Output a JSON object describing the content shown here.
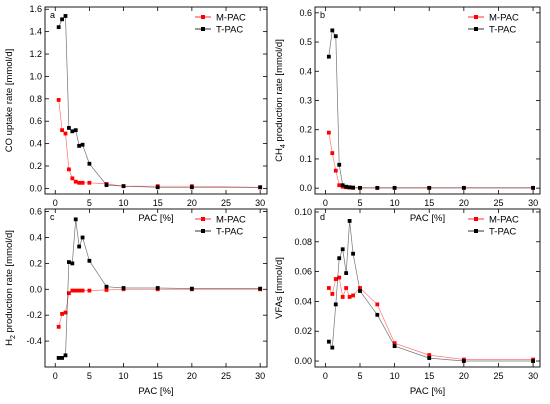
{
  "figure": {
    "series_styles": [
      {
        "key": "M-PAC",
        "color": "#ff0000"
      },
      {
        "key": "T-PAC",
        "color": "#000000"
      }
    ]
  },
  "chart_data": [
    {
      "panel": "a",
      "type": "scatter",
      "xlabel": "PAC [%]",
      "ylabel": "CO uptake rate [mmol/d]",
      "ylabel_parts": [
        {
          "t": "CO uptake rate [mmol/d]",
          "sub": false
        }
      ],
      "xlim": [
        -1.5,
        31
      ],
      "ylim": [
        -0.05,
        1.62
      ],
      "xticks": [
        0,
        5,
        10,
        15,
        20,
        25,
        30
      ],
      "yticks": [
        0.0,
        0.2,
        0.4,
        0.6,
        0.8,
        1.0,
        1.2,
        1.4,
        1.6
      ],
      "ytick_labels": [
        "0.0",
        "0.2",
        "0.4",
        "0.6",
        "0.8",
        "1.0",
        "1.2",
        "1.4",
        "1.6"
      ],
      "legend": "top-right",
      "series": [
        {
          "name": "M-PAC",
          "x": [
            0.5,
            1,
            1.5,
            2,
            2.5,
            3,
            3.5,
            4,
            5,
            7.5,
            10,
            15,
            20,
            30
          ],
          "y": [
            0.79,
            0.52,
            0.49,
            0.17,
            0.09,
            0.06,
            0.05,
            0.05,
            0.05,
            0.04,
            0.02,
            0.02,
            0.02,
            0.01
          ]
        },
        {
          "name": "T-PAC",
          "x": [
            0.5,
            1,
            1.5,
            2,
            2.5,
            3,
            3.5,
            4,
            5,
            7.5,
            10,
            15,
            20,
            30
          ],
          "y": [
            1.44,
            1.51,
            1.54,
            0.54,
            0.51,
            0.52,
            0.38,
            0.39,
            0.22,
            0.03,
            0.02,
            0.01,
            0.01,
            0.01
          ]
        }
      ]
    },
    {
      "panel": "b",
      "type": "scatter",
      "xlabel": "PAC [%]",
      "ylabel": "CH4 production rate [mmol/d]",
      "ylabel_parts": [
        {
          "t": "CH",
          "sub": false
        },
        {
          "t": "4",
          "sub": true
        },
        {
          "t": " production rate [mmol/d]",
          "sub": false
        }
      ],
      "xlim": [
        -1.5,
        31
      ],
      "ylim": [
        -0.02,
        0.62
      ],
      "xticks": [
        0,
        5,
        10,
        15,
        20,
        25,
        30
      ],
      "yticks": [
        0.0,
        0.1,
        0.2,
        0.3,
        0.4,
        0.5,
        0.6
      ],
      "ytick_labels": [
        "0.0",
        "0.1",
        "0.2",
        "0.3",
        "0.4",
        "0.5",
        "0.6"
      ],
      "legend": "top-right",
      "series": [
        {
          "name": "M-PAC",
          "x": [
            0.5,
            1,
            1.5,
            2,
            2.5,
            3,
            3.5,
            4,
            5,
            7.5,
            10,
            15,
            20,
            30
          ],
          "y": [
            0.19,
            0.12,
            0.06,
            0.01,
            0.005,
            0.003,
            0.002,
            0.001,
            0.001,
            0.001,
            0.001,
            0.001,
            0.001,
            0.001
          ]
        },
        {
          "name": "T-PAC",
          "x": [
            0.5,
            1,
            1.5,
            2,
            2.5,
            3,
            3.5,
            4,
            5,
            7.5,
            10,
            15,
            20,
            30
          ],
          "y": [
            0.45,
            0.54,
            0.52,
            0.08,
            0.01,
            0.005,
            0.003,
            0.002,
            0.001,
            0.001,
            0.001,
            0.001,
            0.001,
            0.001
          ]
        }
      ]
    },
    {
      "panel": "c",
      "type": "scatter",
      "xlabel": "PAC [%]",
      "ylabel": "H2 production rate [mmol/d]",
      "ylabel_parts": [
        {
          "t": "H",
          "sub": false
        },
        {
          "t": "2",
          "sub": true
        },
        {
          "t": " production rate [mmol/d]",
          "sub": false
        }
      ],
      "xlim": [
        -1.5,
        31
      ],
      "ylim": [
        -0.6,
        0.62
      ],
      "xticks": [
        0,
        5,
        10,
        15,
        20,
        25,
        30
      ],
      "yticks": [
        -0.4,
        -0.2,
        0.0,
        0.2,
        0.4,
        0.6
      ],
      "ytick_labels": [
        "-0.4",
        "-0.2",
        "0.0",
        "0.2",
        "0.4",
        "0.6"
      ],
      "legend": "top-right",
      "series": [
        {
          "name": "M-PAC",
          "x": [
            0.5,
            1,
            1.5,
            2,
            2.5,
            3,
            3.5,
            4,
            5,
            7.5,
            10,
            15,
            20,
            30
          ],
          "y": [
            -0.29,
            -0.19,
            -0.18,
            -0.03,
            -0.01,
            -0.01,
            -0.01,
            -0.01,
            -0.01,
            -0.005,
            0.0,
            0.0,
            0.0,
            0.0
          ]
        },
        {
          "name": "T-PAC",
          "x": [
            0.5,
            1,
            1.5,
            2,
            2.5,
            3,
            3.5,
            4,
            5,
            7.5,
            10,
            15,
            20,
            30
          ],
          "y": [
            -0.53,
            -0.53,
            -0.51,
            0.21,
            0.2,
            0.54,
            0.33,
            0.4,
            0.22,
            0.02,
            0.01,
            0.01,
            0.005,
            0.005
          ]
        }
      ]
    },
    {
      "panel": "d",
      "type": "scatter",
      "xlabel": "PAC [%]",
      "ylabel": "VFAs [mmol/d]",
      "ylabel_parts": [
        {
          "t": "VFAs [mmol/d]",
          "sub": false
        }
      ],
      "xlim": [
        -1.5,
        31
      ],
      "ylim": [
        -0.004,
        0.102
      ],
      "xticks": [
        0,
        5,
        10,
        15,
        20,
        25,
        30
      ],
      "yticks": [
        0.0,
        0.02,
        0.04,
        0.06,
        0.08,
        0.1
      ],
      "ytick_labels": [
        "0.00",
        "0.02",
        "0.04",
        "0.06",
        "0.08",
        "0.10"
      ],
      "legend": "top-right",
      "series": [
        {
          "name": "M-PAC",
          "x": [
            0.5,
            1,
            1.5,
            2,
            2.5,
            3,
            3.5,
            4,
            5,
            7.5,
            10,
            15,
            20,
            30
          ],
          "y": [
            0.049,
            0.045,
            0.055,
            0.056,
            0.043,
            0.049,
            0.043,
            0.044,
            0.049,
            0.038,
            0.012,
            0.004,
            0.001,
            0.001
          ]
        },
        {
          "name": "T-PAC",
          "x": [
            0.5,
            1,
            1.5,
            2,
            2.5,
            3,
            3.5,
            4,
            5,
            7.5,
            10,
            15,
            20,
            30
          ],
          "y": [
            0.013,
            0.009,
            0.038,
            0.069,
            0.075,
            0.059,
            0.094,
            0.072,
            0.047,
            0.031,
            0.01,
            0.002,
            0.0,
            0.0
          ]
        }
      ]
    }
  ]
}
